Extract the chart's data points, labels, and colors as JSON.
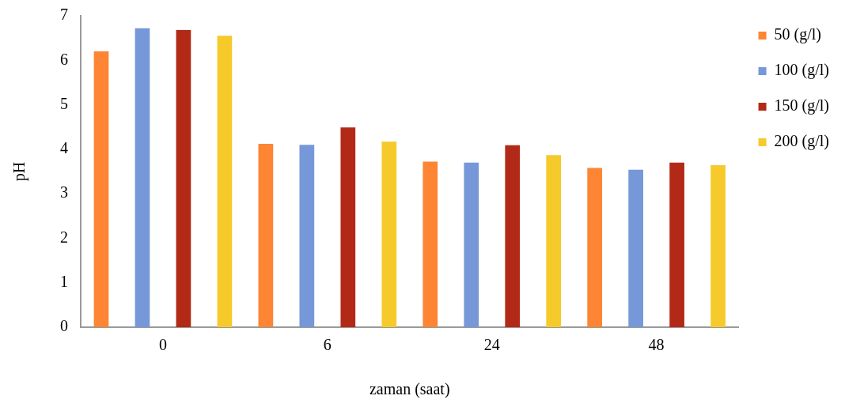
{
  "chart_data": {
    "type": "bar",
    "xlabel": "zaman (saat)",
    "ylabel": "pH",
    "categories": [
      "0",
      "6",
      "24",
      "48"
    ],
    "series": [
      {
        "name": "50 (g/l)",
        "color": "#fd8534",
        "values": [
          6.2,
          4.12,
          3.72,
          3.58
        ]
      },
      {
        "name": "100 (g/l)",
        "color": "#7698d8",
        "values": [
          6.72,
          4.1,
          3.7,
          3.54
        ]
      },
      {
        "name": "150 (g/l)",
        "color": "#b22a17",
        "values": [
          6.68,
          4.49,
          4.09,
          3.7
        ]
      },
      {
        "name": "200 (g/l)",
        "color": "#f6ca2b",
        "values": [
          6.55,
          4.17,
          3.87,
          3.64
        ]
      }
    ],
    "ylim": [
      0,
      7
    ],
    "yticks": [
      0,
      1,
      2,
      3,
      4,
      5,
      6,
      7
    ],
    "grid": false,
    "legend": "top right"
  }
}
